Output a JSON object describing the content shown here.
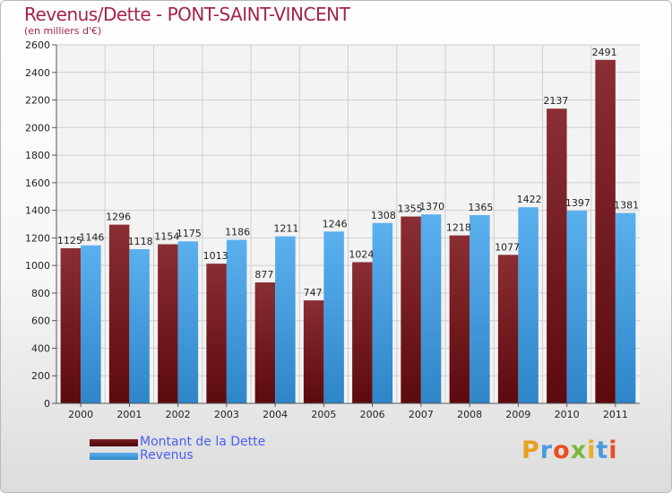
{
  "title": "Revenus/Dette - PONT-SAINT-VINCENT",
  "subtitle": "(en milliers d'€)",
  "logo": {
    "text": "Proxiti",
    "colors": [
      "#e8a020",
      "#4a9be0",
      "#e85020",
      "#7ab83a",
      "#e8b020",
      "#4a9be0",
      "#e85020"
    ]
  },
  "colors": {
    "debt": "#7a1f24",
    "revenue": "#4aa3e6",
    "title": "#a3244a",
    "legend_text": "#4a5ef0"
  },
  "chart_data": {
    "type": "bar",
    "title": "Revenus/Dette - PONT-SAINT-VINCENT",
    "ylabel": "(en milliers d'€)",
    "xlabel": "",
    "ylim": [
      0,
      2600
    ],
    "yticks": [
      0,
      200,
      400,
      600,
      800,
      1000,
      1200,
      1400,
      1600,
      1800,
      2000,
      2200,
      2400,
      2600
    ],
    "grid": true,
    "legend_position": "bottom-left",
    "categories": [
      "2000",
      "2001",
      "2002",
      "2003",
      "2004",
      "2005",
      "2006",
      "2007",
      "2008",
      "2009",
      "2010",
      "2011"
    ],
    "series": [
      {
        "name": "Montant de la Dette",
        "values": [
          1125,
          1296,
          1154,
          1013,
          877,
          747,
          1024,
          1355,
          1218,
          1077,
          2137,
          2491
        ]
      },
      {
        "name": "Revenus",
        "values": [
          1146,
          1118,
          1175,
          1186,
          1211,
          1246,
          1308,
          1370,
          1365,
          1422,
          1397,
          1381
        ]
      }
    ]
  }
}
